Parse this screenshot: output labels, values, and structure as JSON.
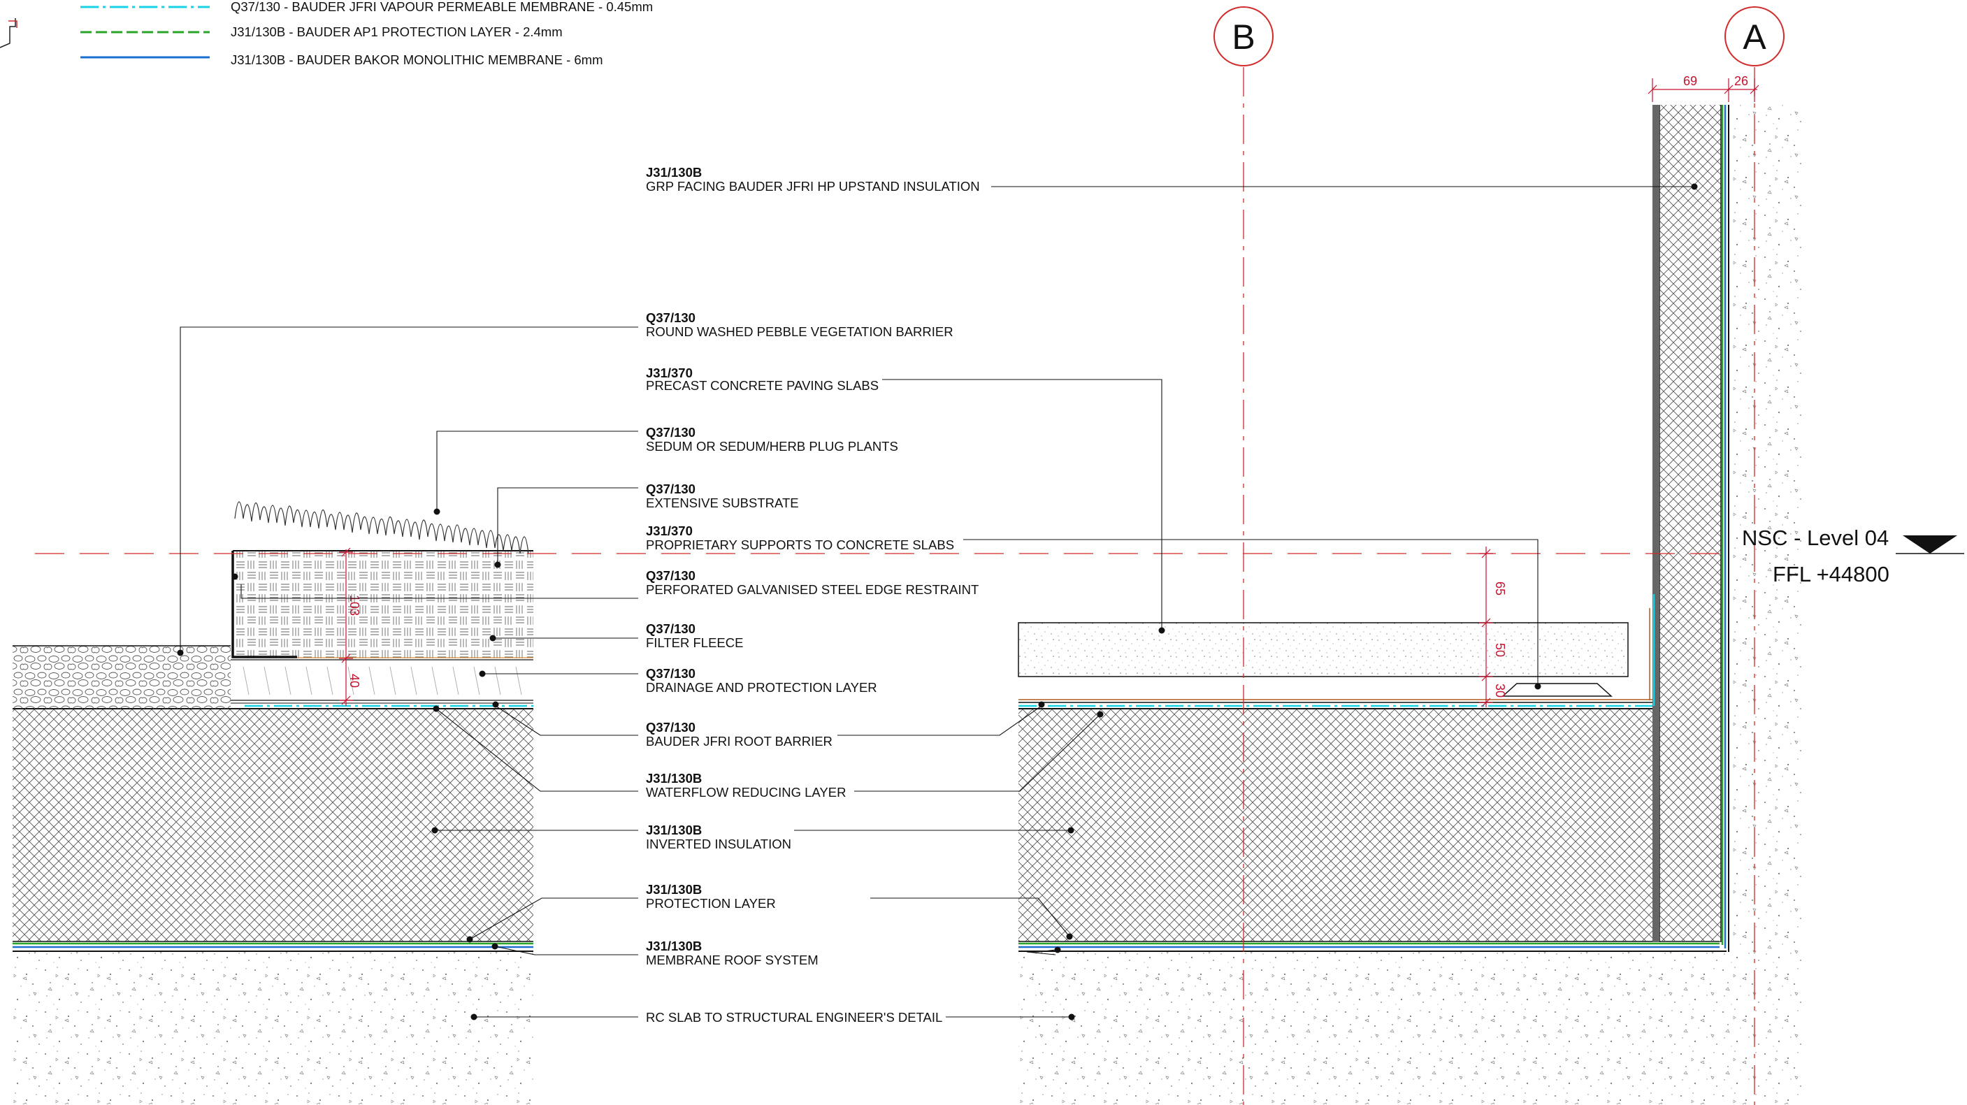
{
  "colors": {
    "vapour_membrane": "#18d3e6",
    "protection_layer": "#2aa52a",
    "monolithic_membrane": "#1a6fd1",
    "grid_line": "#d12b2b",
    "dimension": "#c4122f",
    "linework": "#111111",
    "upstand_facing": "#666666"
  },
  "legend": [
    {
      "text": "Q37/130 - BAUDER JFRI VAPOUR PERMEABLE MEMBRANE - 0.45mm",
      "line_style": "dash-dot",
      "color": "#18d3e6"
    },
    {
      "text": "J31/130B - BAUDER AP1 PROTECTION LAYER - 2.4mm",
      "line_style": "dashed",
      "color": "#2aa52a"
    },
    {
      "text": "J31/130B - BAUDER BAKOR MONOLITHIC MEMBRANE - 6mm",
      "line_style": "solid",
      "color": "#1a6fd1"
    }
  ],
  "grid": {
    "b": "B",
    "a": "A"
  },
  "level": {
    "name": "NSC - Level 04",
    "ffl": "FFL +44800"
  },
  "dimensions": {
    "top_left": "69",
    "top_right": "26",
    "d65": "65",
    "d50": "50",
    "d30": "30",
    "d103": "103",
    "d40": "40"
  },
  "labels": [
    {
      "code": "J31/130B",
      "text": "GRP FACING BAUDER JFRI HP UPSTAND INSULATION"
    },
    {
      "code": "Q37/130",
      "text": "ROUND WASHED PEBBLE VEGETATION BARRIER"
    },
    {
      "code": "J31/370",
      "text": "PRECAST CONCRETE PAVING SLABS"
    },
    {
      "code": "Q37/130",
      "text": "SEDUM OR SEDUM/HERB PLUG PLANTS"
    },
    {
      "code": "Q37/130",
      "text": "EXTENSIVE SUBSTRATE"
    },
    {
      "code": "J31/370",
      "text": "PROPRIETARY SUPPORTS TO CONCRETE SLABS"
    },
    {
      "code": "Q37/130",
      "text": "PERFORATED GALVANISED STEEL EDGE RESTRAINT"
    },
    {
      "code": "Q37/130",
      "text": "FILTER FLEECE"
    },
    {
      "code": "Q37/130",
      "text": "DRAINAGE AND PROTECTION LAYER"
    },
    {
      "code": "Q37/130",
      "text": "BAUDER JFRI ROOT BARRIER"
    },
    {
      "code": "J31/130B",
      "text": "WATERFLOW REDUCING LAYER"
    },
    {
      "code": "J31/130B",
      "text": "INVERTED INSULATION"
    },
    {
      "code": "J31/130B",
      "text": "PROTECTION LAYER"
    },
    {
      "code": "J31/130B",
      "text": "MEMBRANE ROOF SYSTEM"
    },
    {
      "code": "",
      "text": "RC SLAB TO STRUCTURAL ENGINEER'S DETAIL"
    }
  ]
}
